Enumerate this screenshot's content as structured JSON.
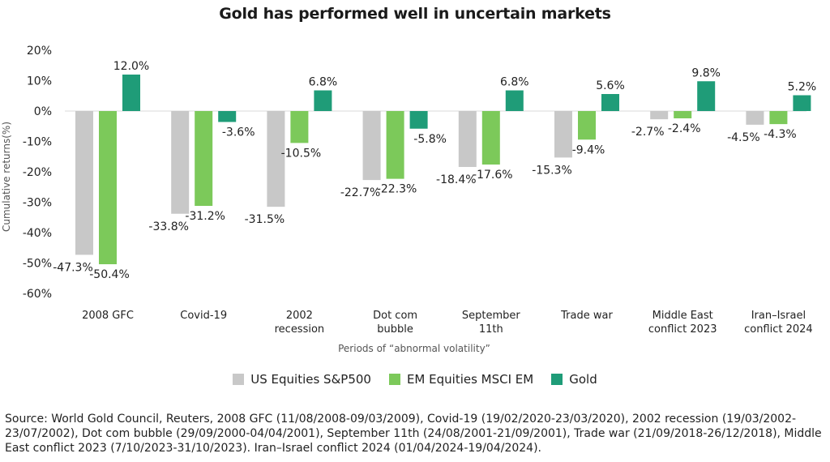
{
  "title": "Gold has performed well in uncertain markets",
  "source": "Source: World Gold Council, Reuters, 2008 GFC (11/08/2008-09/03/2009), Covid-19 (19/02/2020-23/03/2020), 2002 recession (19/03/2002-23/07/2002), Dot com bubble (29/09/2000-04/04/2001), September 11th (24/08/2001-21/09/2001), Trade war (21/09/2018-26/12/2018), Middle East conflict 2023 (7/10/2023-31/10/2023). Iran–Israel conflict 2024 (01/04/2024-19/04/2024).",
  "colors": {
    "us": "#c8c8c8",
    "em": "#7cc95a",
    "gold": "#1f9c78"
  },
  "chart_data": {
    "type": "bar",
    "title": "Gold has performed well in uncertain markets",
    "xlabel": "Periods of “abnormal volatility”",
    "ylabel": "Cumulative returns(%)",
    "ylim": [
      -60,
      20
    ],
    "yticks": [
      20,
      10,
      0,
      -10,
      -20,
      -30,
      -40,
      -50,
      -60
    ],
    "ytick_labels": [
      "20%",
      "10%",
      "0%",
      "-10%",
      "-20%",
      "-30%",
      "-40%",
      "-50%",
      "-60%"
    ],
    "categories": [
      [
        "2008 GFC"
      ],
      [
        "Covid-19"
      ],
      [
        "2002",
        "recession"
      ],
      [
        "Dot com",
        "bubble"
      ],
      [
        "September",
        "11th"
      ],
      [
        "Trade war"
      ],
      [
        "Middle East",
        "conflict 2023"
      ],
      [
        "Iran–Israel",
        "conflict 2024"
      ]
    ],
    "series": [
      {
        "name": "US Equities S&P500",
        "values": [
          -47.3,
          -33.8,
          -31.5,
          -22.7,
          -18.4,
          -15.3,
          -2.7,
          -4.5
        ],
        "labels": [
          "-47.3%",
          "-33.8%",
          "-31.5%",
          "-22.7%",
          "-18.4%",
          "-15.3%",
          "-2.7%",
          "-4.5%"
        ]
      },
      {
        "name": "EM Equities MSCI EM",
        "values": [
          -50.4,
          -31.2,
          -10.5,
          -22.3,
          -17.6,
          -9.4,
          -2.4,
          -4.3
        ],
        "labels": [
          "-50.4%",
          "-31.2%",
          "-10.5%",
          "-22.3%",
          "-17.6%",
          "-9.4%",
          "-2.4%",
          "-4.3%"
        ]
      },
      {
        "name": "Gold",
        "values": [
          12.0,
          -3.6,
          6.8,
          -5.8,
          6.8,
          5.6,
          9.8,
          5.2
        ],
        "labels": [
          "12.0%",
          "-3.6%",
          "6.8%",
          "-5.8%",
          "6.8%",
          "5.6%",
          "9.8%",
          "5.2%"
        ]
      }
    ],
    "legend_position": "bottom",
    "grid": false
  }
}
